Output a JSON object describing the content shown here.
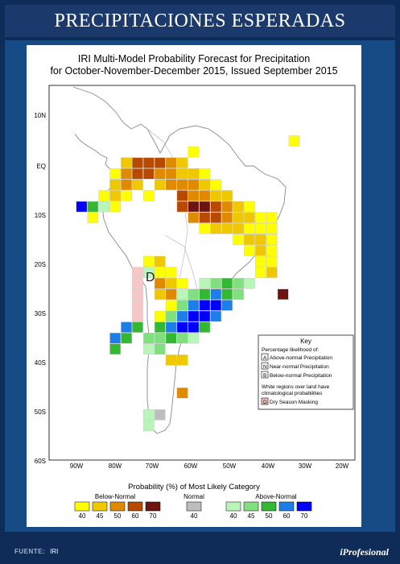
{
  "header": {
    "title": "PRECIPITACIONES ESPERADAS"
  },
  "map": {
    "title_line1": "IRI Multi-Model Probability Forecast for Precipitation",
    "title_line2": "for October-November-December 2015, Issued September 2015",
    "lat_labels": [
      "10N",
      "EQ",
      "10S",
      "20S",
      "30S",
      "40S",
      "50S",
      "60S"
    ],
    "lon_labels": [
      "90W",
      "80W",
      "70W",
      "60W",
      "50W",
      "40W",
      "30W",
      "20W"
    ],
    "dry_season_marker": "D"
  },
  "key": {
    "title": "Key",
    "subtitle": "Percentage likelihood of:",
    "items": [
      {
        "letter": "A",
        "label": "Above-normal Precipitation"
      },
      {
        "letter": "N",
        "label": "Near-normal Precipitation"
      },
      {
        "letter": "B",
        "label": "Below-normal Precipitation"
      }
    ],
    "note_line1": "White regions over land have",
    "note_line2": "climatological probabilities",
    "dry_letter": "D",
    "dry_label": "Dry Season Masking"
  },
  "legend": {
    "title": "Probability (%) of Most Likely Category",
    "below_label": "Below-Normal",
    "normal_label": "Normal",
    "above_label": "Above-Normal",
    "below_values": [
      "40",
      "45",
      "50",
      "60",
      "70"
    ],
    "normal_values": [
      "40"
    ],
    "above_values": [
      "40",
      "45",
      "50",
      "60",
      "70"
    ],
    "below_colors": [
      "#ffff00",
      "#f0c800",
      "#e08a00",
      "#b84a00",
      "#6e1410"
    ],
    "normal_color": "#bdbdbd",
    "above_colors": [
      "#b8f5b8",
      "#80e080",
      "#33b833",
      "#1e7ee8",
      "#0000ff"
    ]
  },
  "footer": {
    "source_label": "FUENTE:",
    "source_value": "IRI",
    "brand": "iProfesional"
  }
}
